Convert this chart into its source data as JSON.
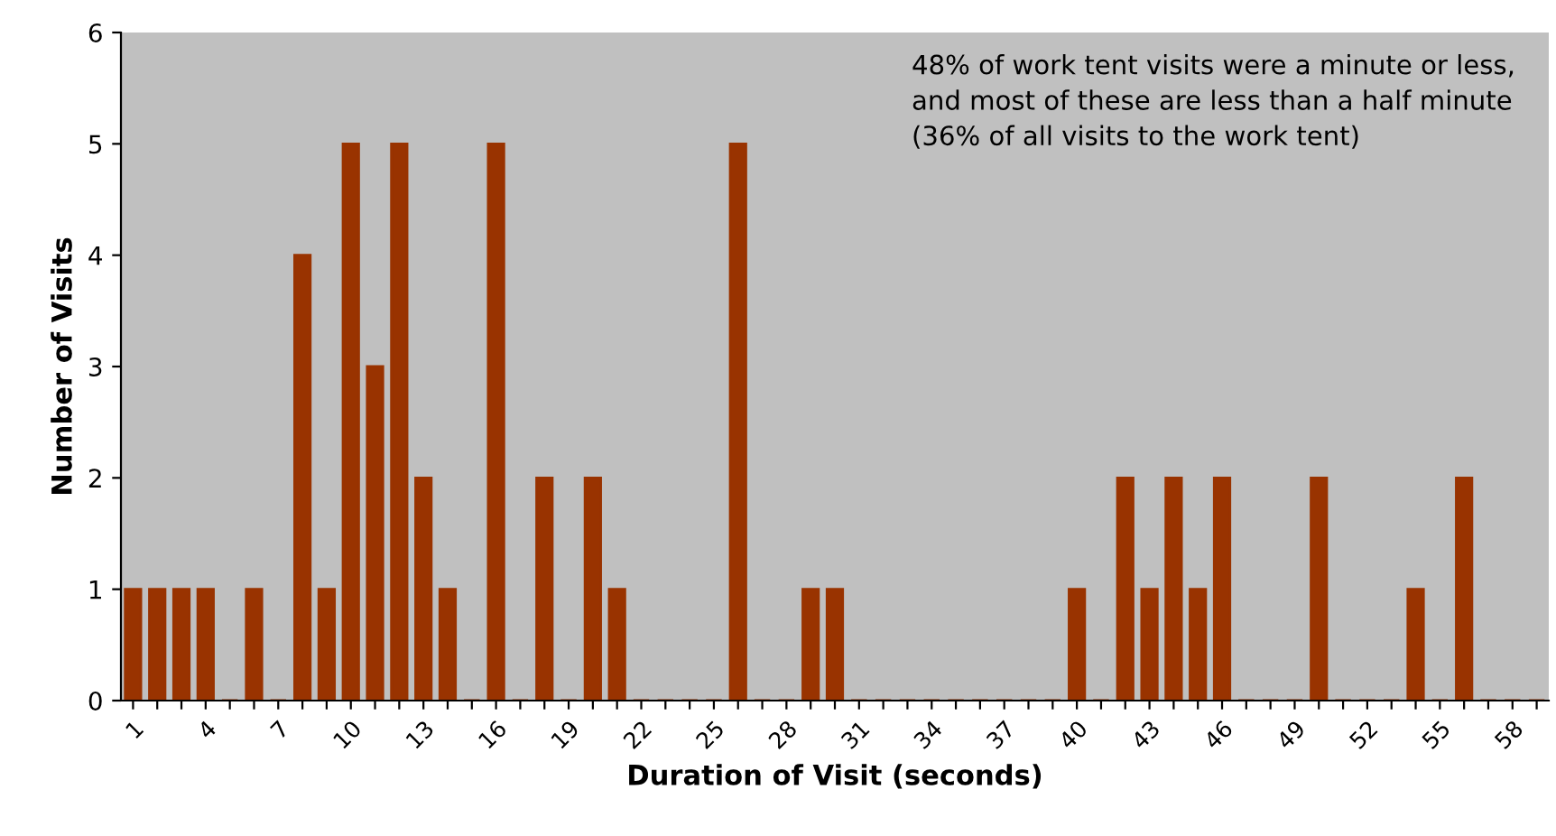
{
  "chart_data": {
    "type": "bar",
    "xlabel": "Duration of Visit (seconds)",
    "ylabel": "Number of Visits",
    "categories": [
      "1",
      null,
      null,
      "4",
      null,
      null,
      "7",
      null,
      null,
      "10",
      null,
      null,
      "13",
      null,
      null,
      "16",
      null,
      null,
      "19",
      null,
      null,
      "22",
      null,
      null,
      "25",
      null,
      null,
      "28",
      null,
      null,
      "31",
      null,
      null,
      "34",
      null,
      null,
      "37",
      null,
      null,
      "40",
      null,
      null,
      "43",
      null,
      null,
      "46",
      null,
      null,
      "49",
      null,
      null,
      "52",
      null,
      null,
      "55",
      null,
      null,
      "58",
      null
    ],
    "values": [
      1,
      1,
      1,
      1,
      0,
      1,
      0,
      4,
      1,
      5,
      3,
      5,
      2,
      1,
      0,
      5,
      0,
      2,
      0,
      2,
      1,
      0,
      0,
      0,
      0,
      5,
      0,
      0,
      1,
      1,
      0,
      0,
      0,
      0,
      0,
      0,
      0,
      0,
      0,
      1,
      0,
      2,
      1,
      2,
      1,
      2,
      0,
      0,
      0,
      2,
      0,
      0,
      0,
      1,
      0,
      2,
      0,
      0,
      0
    ],
    "color": "#993300",
    "ylim": [
      0,
      6
    ],
    "yticks": [
      0,
      1,
      2,
      3,
      4,
      5,
      6
    ],
    "annotations": [
      "48% of work tent visits were a minute or less, and most of these are less than a half minute (36% of all visits to the work tent)"
    ]
  }
}
